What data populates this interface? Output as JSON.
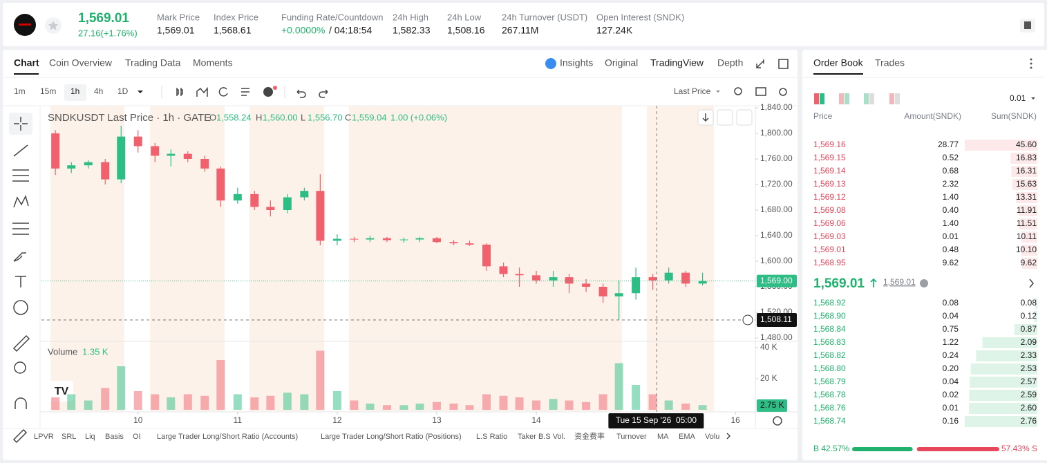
{
  "header": {
    "price": "1,569.01",
    "change": "27.16(+1.76%)",
    "stats": [
      {
        "label": "Mark Price",
        "value": "1,569.01"
      },
      {
        "label": "Index Price",
        "value": "1,568.61"
      },
      {
        "label": "Funding Rate/Countdown",
        "value": "+0.0000%",
        "extra": "/ 04:18:54"
      },
      {
        "label": "24h High",
        "value": "1,582.33"
      },
      {
        "label": "24h Low",
        "value": "1,508.16"
      },
      {
        "label": "24h Turnover (USDT)",
        "value": "267.11M"
      },
      {
        "label": "Open Interest (SNDK)",
        "value": "127.24K"
      }
    ]
  },
  "tabs": [
    "Chart",
    "Coin Overview",
    "Trading Data",
    "Moments"
  ],
  "views": [
    "Insights",
    "Original",
    "TradingView",
    "Depth"
  ],
  "intervals": [
    "1m",
    "15m",
    "1h",
    "4h",
    "1D"
  ],
  "price_source": "Last Price",
  "legend": {
    "title": "SNDKUSDT Last Price · 1h · GATE",
    "ohlc": [
      {
        "key": "O",
        "value": "1,558.24"
      },
      {
        "key": "H",
        "value": "1,560.00"
      },
      {
        "key": "L",
        "value": "1,556.70"
      },
      {
        "key": "C",
        "value": "1,559.04"
      }
    ],
    "change": "1.00 (+0.06%)"
  },
  "volume_legend": {
    "title": "Volume",
    "value": "1.35 K"
  },
  "indicators": [
    "LPVR",
    "SRL",
    "Liq",
    "Basis",
    "OI",
    "Large Trader Long/Short Ratio (Accounts)",
    "Large Trader Long/Short Ratio (Positions)",
    "L.S Ratio",
    "Taker B.S Vol.",
    "资金费率",
    "Turnover",
    "MA",
    "EMA",
    "Volu"
  ],
  "chart_data": {
    "type": "candlestick",
    "x": [
      9.17,
      9.33,
      9.5,
      9.67,
      9.83,
      10,
      10.17,
      10.33,
      10.5,
      10.67,
      10.83,
      11,
      11.17,
      11.33,
      11.5,
      11.67,
      11.83,
      12,
      12.17,
      12.33,
      12.5,
      12.67,
      12.83,
      13,
      13.17,
      13.33,
      13.5,
      13.67,
      13.83,
      14,
      14.17,
      14.33,
      14.5,
      14.67,
      14.83,
      15,
      15.17,
      15.33,
      15.5,
      15.67
    ],
    "open": [
      1800,
      1745,
      1750,
      1755,
      1728,
      1795,
      1780,
      1765,
      1768,
      1760,
      1745,
      1695,
      1705,
      1685,
      1680,
      1700,
      1710,
      1632,
      1635,
      1634,
      1636,
      1633,
      1634,
      1636,
      1630,
      1628,
      1626,
      1592,
      1580,
      1578,
      1570,
      1575,
      1565,
      1560,
      1545,
      1550,
      1575,
      1570,
      1582,
      1565
    ],
    "high": [
      1805,
      1755,
      1758,
      1760,
      1812,
      1805,
      1785,
      1775,
      1772,
      1765,
      1748,
      1715,
      1710,
      1695,
      1705,
      1715,
      1736,
      1642,
      1638,
      1640,
      1638,
      1637,
      1638,
      1638,
      1633,
      1632,
      1628,
      1598,
      1590,
      1585,
      1585,
      1580,
      1572,
      1565,
      1570,
      1590,
      1580,
      1590,
      1585,
      1582
    ],
    "low": [
      1735,
      1738,
      1745,
      1720,
      1722,
      1770,
      1755,
      1748,
      1755,
      1740,
      1685,
      1690,
      1680,
      1670,
      1675,
      1695,
      1625,
      1625,
      1630,
      1630,
      1630,
      1629,
      1630,
      1628,
      1625,
      1624,
      1585,
      1575,
      1560,
      1565,
      1560,
      1550,
      1552,
      1535,
      1508,
      1540,
      1555,
      1565,
      1560,
      1562
    ],
    "close": [
      1745,
      1750,
      1755,
      1728,
      1795,
      1780,
      1765,
      1768,
      1760,
      1745,
      1695,
      1705,
      1685,
      1680,
      1700,
      1710,
      1632,
      1635,
      1634,
      1636,
      1633,
      1634,
      1636,
      1630,
      1628,
      1626,
      1592,
      1580,
      1578,
      1570,
      1575,
      1565,
      1560,
      1545,
      1550,
      1575,
      1570,
      1582,
      1565,
      1569
    ],
    "volume": [
      8,
      10,
      6,
      14,
      28,
      12,
      10,
      8,
      10,
      9,
      32,
      10,
      8,
      9,
      11,
      10,
      38,
      12,
      6,
      4,
      3,
      3,
      4,
      5,
      4,
      3,
      10,
      9,
      8,
      6,
      7,
      6,
      5,
      10,
      30,
      16,
      10,
      6,
      4,
      3
    ],
    "up_color": "#2ebd85",
    "down_color": "#f0616d",
    "xlim": [
      9.03,
      16.2
    ],
    "xticks": [
      10,
      11,
      12,
      13,
      14,
      16
    ],
    "ylim": [
      1480,
      1840
    ],
    "yticks": [
      {
        "value": 1840,
        "label": "1,840.00"
      },
      {
        "value": 1800,
        "label": "1,800.00"
      },
      {
        "value": 1760,
        "label": "1,760.00"
      },
      {
        "value": 1720,
        "label": "1,720.00"
      },
      {
        "value": 1680,
        "label": "1,680.00"
      },
      {
        "value": 1640,
        "label": "1,640.00"
      },
      {
        "value": 1600,
        "label": "1,600.00"
      },
      {
        "value": 1560,
        "label": "1,560.00"
      },
      {
        "value": 1520,
        "label": "1,520.00"
      },
      {
        "value": 1480,
        "label": "1,480.00"
      }
    ],
    "vlim": [
      0,
      40
    ],
    "vticks": [
      {
        "value": 40,
        "label": "40 K"
      },
      {
        "value": 20,
        "label": "20 K"
      }
    ],
    "last_price_label": "1,569.00",
    "volume_last": {
      "value": 2.75,
      "label": "2.75 K"
    },
    "crosshair": {
      "x": 15.21,
      "y": 1508.11,
      "x_label": "Tue 15 Sep '26  05:00",
      "y_label": "1,508.11"
    }
  },
  "order_book": {
    "tabs": [
      "Order Book",
      "Trades"
    ],
    "precision": "0.01",
    "columns": [
      "Price",
      "Amount(SNDK)",
      "Sum(SNDK)"
    ],
    "asks": [
      [
        "1,569.16",
        "28.77",
        "45.60"
      ],
      [
        "1,569.15",
        "0.52",
        "16.83"
      ],
      [
        "1,569.14",
        "0.68",
        "16.31"
      ],
      [
        "1,569.13",
        "2.32",
        "15.63"
      ],
      [
        "1,569.12",
        "1.40",
        "13.31"
      ],
      [
        "1,569.08",
        "0.40",
        "11.91"
      ],
      [
        "1,569.06",
        "1.40",
        "11.51"
      ],
      [
        "1,569.03",
        "0.01",
        "10.11"
      ],
      [
        "1,569.01",
        "0.48",
        "10.10"
      ],
      [
        "1,568.95",
        "9.62",
        "9.62"
      ]
    ],
    "mid": {
      "price": "1,569.01",
      "mark": "1,569.01"
    },
    "bids": [
      [
        "1,568.92",
        "0.08",
        "0.08"
      ],
      [
        "1,568.90",
        "0.04",
        "0.12"
      ],
      [
        "1,568.84",
        "0.75",
        "0.87"
      ],
      [
        "1,568.83",
        "1.22",
        "2.09"
      ],
      [
        "1,568.82",
        "0.24",
        "2.33"
      ],
      [
        "1,568.80",
        "0.20",
        "2.53"
      ],
      [
        "1,568.79",
        "0.04",
        "2.57"
      ],
      [
        "1,568.78",
        "0.02",
        "2.59"
      ],
      [
        "1,568.76",
        "0.01",
        "2.60"
      ],
      [
        "1,568.74",
        "0.16",
        "2.76"
      ]
    ],
    "ratio": {
      "buy": 42.57,
      "buy_label": "B 42.57%",
      "sell": 57.43,
      "sell_label": "57.43% S"
    }
  }
}
